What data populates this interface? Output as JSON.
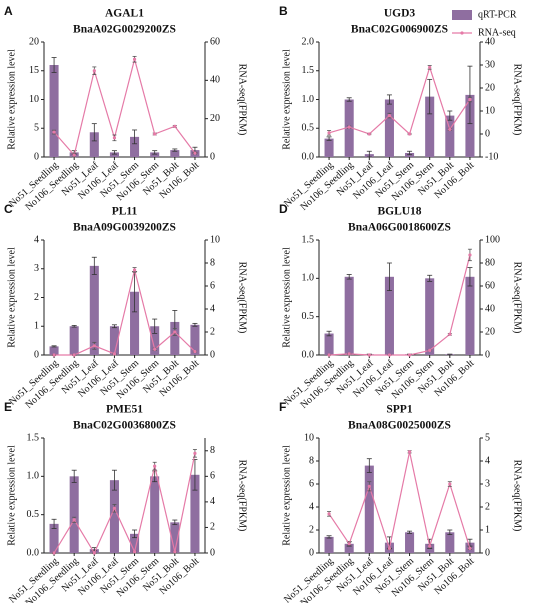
{
  "chart_data": [
    {
      "type": "bar",
      "panel_label": "A",
      "title": "AGAL1",
      "subtitle": "BnaA02G0029200ZS",
      "y_label": "Relative expression level",
      "y2_label": "RNA-seq(FPKM)",
      "categories": [
        "No51_Seedling",
        "No106_Seedling",
        "No51_Leaf",
        "No106_Leaf",
        "No51_Stem",
        "No106_Stem",
        "No51_Bolt",
        "No106_Bolt"
      ],
      "ylim": [
        0,
        20
      ],
      "yticks": [
        0,
        5,
        10,
        15,
        20
      ],
      "y2lim": [
        0,
        60
      ],
      "y2ticks": [
        0,
        20,
        40,
        60
      ],
      "series": [
        {
          "type": "bar",
          "color": "#8f6ea0",
          "values": [
            16,
            0.8,
            4.3,
            0.8,
            3.5,
            0.8,
            1.2,
            1.2
          ],
          "errors": [
            1.3,
            0.3,
            1.5,
            0.3,
            1.2,
            0.3,
            0.2,
            0.5
          ]
        },
        {
          "type": "line",
          "axis": "y2",
          "color": "#e57aa7",
          "values": [
            13,
            1,
            45,
            10,
            51,
            12,
            16,
            2
          ],
          "errors": [
            1,
            1,
            2,
            1.5,
            1.5,
            0.5,
            0.5,
            0.5
          ]
        }
      ]
    },
    {
      "type": "bar",
      "panel_label": "B",
      "title": "UGD3",
      "subtitle": "BnaC02G006900ZS",
      "y_label": "Relative expression level",
      "y2_label": "RNA-seq(FPKM)",
      "categories": [
        "No51_Seedling",
        "No106_Seedling",
        "No51_Leaf",
        "No106_Leaf",
        "No51_Stem",
        "No106_Stem",
        "No51_Bolt",
        "No106_Bolt"
      ],
      "ylim": [
        0,
        2
      ],
      "yticks": [
        {
          "value": 0,
          "label": "0.0"
        },
        {
          "value": 0.5,
          "label": "0.5"
        },
        {
          "value": 1,
          "label": "1.0"
        },
        {
          "value": 1.5,
          "label": "1.5"
        },
        {
          "value": 2,
          "label": "2.0"
        }
      ],
      "y2lim": [
        -10,
        40
      ],
      "y2ticks": [
        -10,
        0,
        10,
        20,
        30,
        40
      ],
      "series": [
        {
          "type": "bar",
          "name": "qRT-PCR",
          "color": "#8f6ea0",
          "values": [
            0.32,
            1.0,
            0.05,
            1.0,
            0.07,
            1.05,
            0.72,
            1.08
          ],
          "errors": [
            0.03,
            0.03,
            0.05,
            0.08,
            0.03,
            0.3,
            0.08,
            0.5
          ]
        },
        {
          "type": "line",
          "name": "RNA-seq",
          "axis": "y2",
          "color": "#e57aa7",
          "values": [
            0.5,
            3,
            0,
            8,
            0,
            29,
            2,
            15
          ],
          "errors": [
            1,
            0.5,
            0.3,
            1,
            0.3,
            0.8,
            0.5,
            1
          ]
        }
      ]
    },
    {
      "type": "bar",
      "panel_label": "C",
      "title": "PL11",
      "subtitle": "BnaA09G0039200ZS",
      "y_label": "Relative expression level",
      "y2_label": "RNA-seq(FPKM)",
      "categories": [
        "No51_Seedling",
        "No106_Seedling",
        "No51_Leaf",
        "No106_Leaf",
        "No51_Stem",
        "No106_Stem",
        "No51_Bolt",
        "No106_Bolt"
      ],
      "ylim": [
        0,
        4
      ],
      "yticks": [
        0,
        1,
        2,
        3,
        4
      ],
      "y2lim": [
        0,
        10
      ],
      "y2ticks": [
        0,
        2,
        4,
        6,
        8,
        10
      ],
      "series": [
        {
          "type": "bar",
          "color": "#8f6ea0",
          "values": [
            0.3,
            1.0,
            3.1,
            1.0,
            2.2,
            1.0,
            1.15,
            1.05
          ],
          "errors": [
            0.02,
            0.03,
            0.3,
            0.05,
            0.7,
            0.25,
            0.4,
            0.05
          ]
        },
        {
          "type": "line",
          "axis": "y2",
          "color": "#e57aa7",
          "values": [
            0,
            0,
            0.8,
            0.1,
            7.4,
            0.5,
            2,
            0.3
          ],
          "errors": [
            0.05,
            0.05,
            0.3,
            0.05,
            0.2,
            0.1,
            0.3,
            0.05
          ]
        }
      ]
    },
    {
      "type": "bar",
      "panel_label": "D",
      "title": "BGLU18",
      "subtitle": "BnaA06G0018600ZS",
      "y_label": "Relative expression level",
      "y2_label": "RNA-seq(FPKM)",
      "categories": [
        "No51_Seedling",
        "No106_Seedling",
        "No51_Leaf",
        "No106_Leaf",
        "No51_Stem",
        "No106_Stem",
        "No51_Bolt",
        "No106_Bolt"
      ],
      "ylim": [
        0,
        1.5
      ],
      "yticks": [
        {
          "value": 0,
          "label": "0.0"
        },
        {
          "value": 0.5,
          "label": "0.5"
        },
        {
          "value": 1,
          "label": "1.0"
        },
        {
          "value": 1.5,
          "label": "1.5"
        }
      ],
      "y2lim": [
        0,
        100
      ],
      "y2ticks": [
        0,
        20,
        40,
        60,
        80,
        100
      ],
      "series": [
        {
          "type": "bar",
          "color": "#8f6ea0",
          "values": [
            0.28,
            1.02,
            0.01,
            1.02,
            0.01,
            1.0,
            0.01,
            1.02
          ],
          "errors": [
            0.03,
            0.03,
            0,
            0.18,
            0,
            0.04,
            0,
            0.12
          ]
        },
        {
          "type": "line",
          "axis": "y2",
          "color": "#e57aa7",
          "values": [
            0,
            1,
            0,
            0,
            0,
            4,
            18,
            87
          ],
          "errors": [
            0.2,
            0.3,
            0.1,
            0.1,
            0.1,
            0.5,
            0.8,
            5
          ]
        }
      ]
    },
    {
      "type": "bar",
      "panel_label": "E",
      "title": "PME51",
      "subtitle": "BnaC02G0036800ZS",
      "y_label": "Relative expression level",
      "y2_label": "RNA-seq(FPKM)",
      "categories": [
        "No51_Seedling",
        "No106_Seedling",
        "No51_Leaf",
        "No106_Leaf",
        "No51_Stem",
        "No106_Stem",
        "No51_Bolt",
        "No106_Bolt"
      ],
      "ylim": [
        0,
        1.5
      ],
      "yticks": [
        {
          "value": 0,
          "label": "0.0"
        },
        {
          "value": 0.5,
          "label": "0.5"
        },
        {
          "value": 1,
          "label": "1.0"
        },
        {
          "value": 1.5,
          "label": "1.5"
        }
      ],
      "y2lim": [
        0,
        9
      ],
      "y2ticks": [
        0,
        2,
        4,
        6,
        8
      ],
      "series": [
        {
          "type": "bar",
          "color": "#8f6ea0",
          "values": [
            0.38,
            1.0,
            0.05,
            0.95,
            0.25,
            1.0,
            0.4,
            1.02
          ],
          "errors": [
            0.06,
            0.08,
            0.02,
            0.13,
            0.05,
            0.07,
            0.03,
            0.2
          ]
        },
        {
          "type": "line",
          "axis": "y2",
          "color": "#e57aa7",
          "values": [
            0,
            2.6,
            0,
            3.5,
            0.1,
            6.8,
            0.1,
            7.8
          ],
          "errors": [
            0.05,
            0.2,
            0.05,
            0.3,
            0.05,
            0.3,
            0.05,
            0.3
          ]
        }
      ]
    },
    {
      "type": "bar",
      "panel_label": "F",
      "title": "SPP1",
      "subtitle": "BnaA08G0025000ZS",
      "y_label": "Relative expression level",
      "y2_label": "RNA-seq(FPKM)",
      "categories": [
        "No51_Seedling",
        "No106_Seedling",
        "No51_Leaf",
        "No106_Leaf",
        "No51_Stem",
        "No106_Stem",
        "No51_Bolt",
        "No106_Bolt"
      ],
      "ylim": [
        0,
        10
      ],
      "yticks": [
        0,
        2,
        4,
        6,
        8,
        10
      ],
      "y2lim": [
        0,
        5
      ],
      "y2ticks": [
        0,
        1,
        2,
        3,
        4,
        5
      ],
      "series": [
        {
          "type": "bar",
          "color": "#8f6ea0",
          "values": [
            1.4,
            0.8,
            7.6,
            0.9,
            1.8,
            0.8,
            1.8,
            0.9
          ],
          "errors": [
            0.1,
            0.2,
            0.6,
            0.5,
            0.1,
            0.4,
            0.2,
            0.3
          ]
        },
        {
          "type": "line",
          "axis": "y2",
          "color": "#e57aa7",
          "values": [
            1.7,
            0.4,
            2.9,
            0.2,
            4.4,
            0.3,
            3.0,
            0.2
          ],
          "errors": [
            0.1,
            0.05,
            0.2,
            0.05,
            0.05,
            0.05,
            0.1,
            0.05
          ]
        }
      ]
    }
  ]
}
